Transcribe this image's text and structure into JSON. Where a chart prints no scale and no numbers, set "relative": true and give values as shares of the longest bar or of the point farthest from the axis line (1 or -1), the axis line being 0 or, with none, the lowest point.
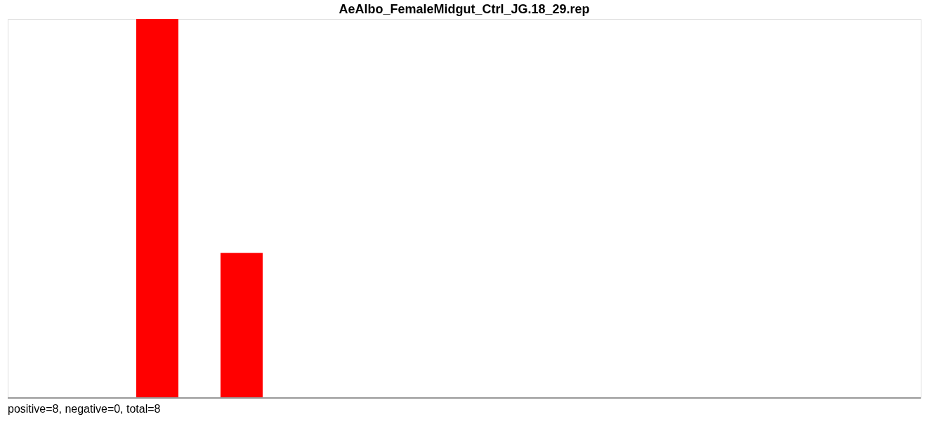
{
  "chart_data": {
    "type": "bar",
    "title": "AeAlbo_FemaleMidgut_Ctrl_JG.18_29.rep",
    "relative": true,
    "categories": [
      null,
      null
    ],
    "values": [
      1,
      0.383
    ],
    "color": "#ff0000",
    "annotations": [
      "positive=8, negative=0, total=8"
    ]
  }
}
